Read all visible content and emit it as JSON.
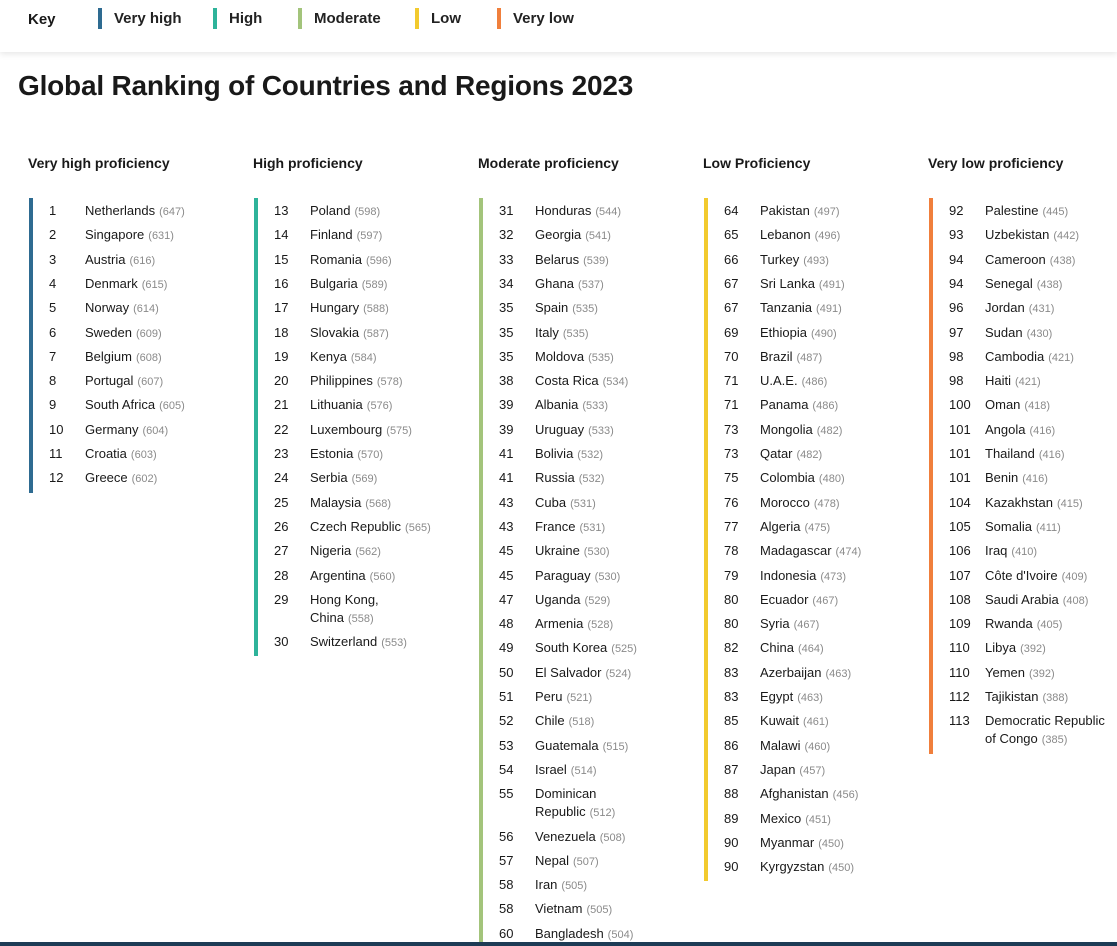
{
  "key": {
    "title": "Key",
    "items": [
      {
        "label": "Very high",
        "color": "#2e6b91"
      },
      {
        "label": "High",
        "color": "#2eb39a"
      },
      {
        "label": "Moderate",
        "color": "#a3c47b"
      },
      {
        "label": "Low",
        "color": "#f2ca2e"
      },
      {
        "label": "Very low",
        "color": "#f07f3c"
      }
    ]
  },
  "title": "Global Ranking of Countries and Regions 2023",
  "columns": [
    {
      "heading": "Very high proficiency",
      "color": "#2e6b91",
      "rows": [
        {
          "rank": "1",
          "country": "Netherlands",
          "score": "(647)"
        },
        {
          "rank": "2",
          "country": "Singapore",
          "score": "(631)"
        },
        {
          "rank": "3",
          "country": "Austria",
          "score": "(616)"
        },
        {
          "rank": "4",
          "country": "Denmark",
          "score": "(615)"
        },
        {
          "rank": "5",
          "country": "Norway",
          "score": "(614)"
        },
        {
          "rank": "6",
          "country": "Sweden",
          "score": "(609)"
        },
        {
          "rank": "7",
          "country": "Belgium",
          "score": "(608)"
        },
        {
          "rank": "8",
          "country": "Portugal",
          "score": "(607)"
        },
        {
          "rank": "9",
          "country": "South Africa",
          "score": "(605)"
        },
        {
          "rank": "10",
          "country": "Germany",
          "score": "(604)"
        },
        {
          "rank": "11",
          "country": "Croatia",
          "score": "(603)"
        },
        {
          "rank": "12",
          "country": "Greece",
          "score": "(602)"
        }
      ]
    },
    {
      "heading": "High proficiency",
      "color": "#2eb39a",
      "rows": [
        {
          "rank": "13",
          "country": "Poland",
          "score": "(598)"
        },
        {
          "rank": "14",
          "country": "Finland",
          "score": "(597)"
        },
        {
          "rank": "15",
          "country": "Romania",
          "score": "(596)"
        },
        {
          "rank": "16",
          "country": "Bulgaria",
          "score": "(589)"
        },
        {
          "rank": "17",
          "country": "Hungary",
          "score": "(588)"
        },
        {
          "rank": "18",
          "country": "Slovakia",
          "score": "(587)"
        },
        {
          "rank": "19",
          "country": "Kenya",
          "score": "(584)"
        },
        {
          "rank": "20",
          "country": "Philippines",
          "score": "(578)"
        },
        {
          "rank": "21",
          "country": "Lithuania",
          "score": "(576)"
        },
        {
          "rank": "22",
          "country": "Luxembourg",
          "score": "(575)"
        },
        {
          "rank": "23",
          "country": "Estonia",
          "score": "(570)"
        },
        {
          "rank": "24",
          "country": "Serbia",
          "score": "(569)"
        },
        {
          "rank": "25",
          "country": "Malaysia",
          "score": "(568)"
        },
        {
          "rank": "26",
          "country": "Czech Republic",
          "score": "(565)"
        },
        {
          "rank": "27",
          "country": "Nigeria",
          "score": "(562)"
        },
        {
          "rank": "28",
          "country": "Argentina",
          "score": "(560)"
        },
        {
          "rank": "29",
          "country": "Hong Kong, China",
          "score": "(558)",
          "lines": 2
        },
        {
          "rank": "30",
          "country": "Switzerland",
          "score": "(553)"
        }
      ]
    },
    {
      "heading": "Moderate proficiency",
      "color": "#a3c47b",
      "rows": [
        {
          "rank": "31",
          "country": "Honduras",
          "score": "(544)"
        },
        {
          "rank": "32",
          "country": "Georgia",
          "score": "(541)"
        },
        {
          "rank": "33",
          "country": "Belarus",
          "score": "(539)"
        },
        {
          "rank": "34",
          "country": "Ghana",
          "score": "(537)"
        },
        {
          "rank": "35",
          "country": "Spain",
          "score": "(535)"
        },
        {
          "rank": "35",
          "country": "Italy",
          "score": "(535)"
        },
        {
          "rank": "35",
          "country": "Moldova",
          "score": "(535)"
        },
        {
          "rank": "38",
          "country": "Costa Rica",
          "score": "(534)"
        },
        {
          "rank": "39",
          "country": "Albania",
          "score": "(533)"
        },
        {
          "rank": "39",
          "country": "Uruguay",
          "score": "(533)"
        },
        {
          "rank": "41",
          "country": "Bolivia",
          "score": "(532)"
        },
        {
          "rank": "41",
          "country": "Russia",
          "score": "(532)"
        },
        {
          "rank": "43",
          "country": "Cuba",
          "score": "(531)"
        },
        {
          "rank": "43",
          "country": "France",
          "score": "(531)"
        },
        {
          "rank": "45",
          "country": "Ukraine",
          "score": "(530)"
        },
        {
          "rank": "45",
          "country": "Paraguay",
          "score": "(530)"
        },
        {
          "rank": "47",
          "country": "Uganda",
          "score": "(529)"
        },
        {
          "rank": "48",
          "country": "Armenia",
          "score": "(528)"
        },
        {
          "rank": "49",
          "country": "South Korea",
          "score": "(525)"
        },
        {
          "rank": "50",
          "country": "El Salvador",
          "score": "(524)"
        },
        {
          "rank": "51",
          "country": "Peru",
          "score": "(521)"
        },
        {
          "rank": "52",
          "country": "Chile",
          "score": "(518)"
        },
        {
          "rank": "53",
          "country": "Guatemala",
          "score": "(515)"
        },
        {
          "rank": "54",
          "country": "Israel",
          "score": "(514)"
        },
        {
          "rank": "55",
          "country": "Dominican Republic",
          "score": "(512)",
          "lines": 2
        },
        {
          "rank": "56",
          "country": "Venezuela",
          "score": "(508)"
        },
        {
          "rank": "57",
          "country": "Nepal",
          "score": "(507)"
        },
        {
          "rank": "58",
          "country": "Iran",
          "score": "(505)"
        },
        {
          "rank": "58",
          "country": "Vietnam",
          "score": "(505)"
        },
        {
          "rank": "60",
          "country": "Bangladesh",
          "score": "(504)"
        }
      ]
    },
    {
      "heading": "Low Proficiency",
      "color": "#f2ca2e",
      "rows": [
        {
          "rank": "64",
          "country": "Pakistan",
          "score": "(497)"
        },
        {
          "rank": "65",
          "country": "Lebanon",
          "score": "(496)"
        },
        {
          "rank": "66",
          "country": "Turkey",
          "score": "(493)"
        },
        {
          "rank": "67",
          "country": "Sri Lanka",
          "score": "(491)"
        },
        {
          "rank": "67",
          "country": "Tanzania",
          "score": "(491)"
        },
        {
          "rank": "69",
          "country": "Ethiopia",
          "score": "(490)"
        },
        {
          "rank": "70",
          "country": "Brazil",
          "score": "(487)"
        },
        {
          "rank": "71",
          "country": "U.A.E.",
          "score": "(486)"
        },
        {
          "rank": "71",
          "country": "Panama",
          "score": "(486)"
        },
        {
          "rank": "73",
          "country": "Mongolia",
          "score": "(482)"
        },
        {
          "rank": "73",
          "country": "Qatar",
          "score": "(482)"
        },
        {
          "rank": "75",
          "country": "Colombia",
          "score": "(480)"
        },
        {
          "rank": "76",
          "country": "Morocco",
          "score": "(478)"
        },
        {
          "rank": "77",
          "country": "Algeria",
          "score": "(475)"
        },
        {
          "rank": "78",
          "country": "Madagascar",
          "score": "(474)"
        },
        {
          "rank": "79",
          "country": "Indonesia",
          "score": "(473)"
        },
        {
          "rank": "80",
          "country": "Ecuador",
          "score": "(467)"
        },
        {
          "rank": "80",
          "country": "Syria",
          "score": "(467)"
        },
        {
          "rank": "82",
          "country": "China",
          "score": "(464)"
        },
        {
          "rank": "83",
          "country": "Azerbaijan",
          "score": "(463)"
        },
        {
          "rank": "83",
          "country": "Egypt",
          "score": "(463)"
        },
        {
          "rank": "85",
          "country": "Kuwait",
          "score": "(461)"
        },
        {
          "rank": "86",
          "country": "Malawi",
          "score": "(460)"
        },
        {
          "rank": "87",
          "country": "Japan",
          "score": "(457)"
        },
        {
          "rank": "88",
          "country": "Afghanistan",
          "score": "(456)"
        },
        {
          "rank": "89",
          "country": "Mexico",
          "score": "(451)"
        },
        {
          "rank": "90",
          "country": "Myanmar",
          "score": "(450)"
        },
        {
          "rank": "90",
          "country": "Kyrgyzstan",
          "score": "(450)"
        }
      ]
    },
    {
      "heading": "Very low proficiency",
      "color": "#f07f3c",
      "rows": [
        {
          "rank": "92",
          "country": "Palestine",
          "score": "(445)"
        },
        {
          "rank": "93",
          "country": "Uzbekistan",
          "score": "(442)"
        },
        {
          "rank": "94",
          "country": "Cameroon",
          "score": "(438)"
        },
        {
          "rank": "94",
          "country": "Senegal",
          "score": "(438)"
        },
        {
          "rank": "96",
          "country": "Jordan",
          "score": "(431)"
        },
        {
          "rank": "97",
          "country": "Sudan",
          "score": "(430)"
        },
        {
          "rank": "98",
          "country": "Cambodia",
          "score": "(421)"
        },
        {
          "rank": "98",
          "country": "Haiti",
          "score": "(421)"
        },
        {
          "rank": "100",
          "country": "Oman",
          "score": "(418)"
        },
        {
          "rank": "101",
          "country": "Angola",
          "score": "(416)"
        },
        {
          "rank": "101",
          "country": "Thailand",
          "score": "(416)"
        },
        {
          "rank": "101",
          "country": "Benin",
          "score": "(416)"
        },
        {
          "rank": "104",
          "country": "Kazakhstan",
          "score": "(415)"
        },
        {
          "rank": "105",
          "country": "Somalia",
          "score": "(411)"
        },
        {
          "rank": "106",
          "country": "Iraq",
          "score": "(410)"
        },
        {
          "rank": "107",
          "country": "Côte d'Ivoire",
          "score": "(409)"
        },
        {
          "rank": "108",
          "country": "Saudi Arabia",
          "score": "(408)"
        },
        {
          "rank": "109",
          "country": "Rwanda",
          "score": "(405)"
        },
        {
          "rank": "110",
          "country": "Libya",
          "score": "(392)"
        },
        {
          "rank": "110",
          "country": "Yemen",
          "score": "(392)"
        },
        {
          "rank": "112",
          "country": "Tajikistan",
          "score": "(388)"
        },
        {
          "rank": "113",
          "country": "Democratic Republic of Congo",
          "score": "(385)",
          "lines": 2
        }
      ]
    }
  ]
}
